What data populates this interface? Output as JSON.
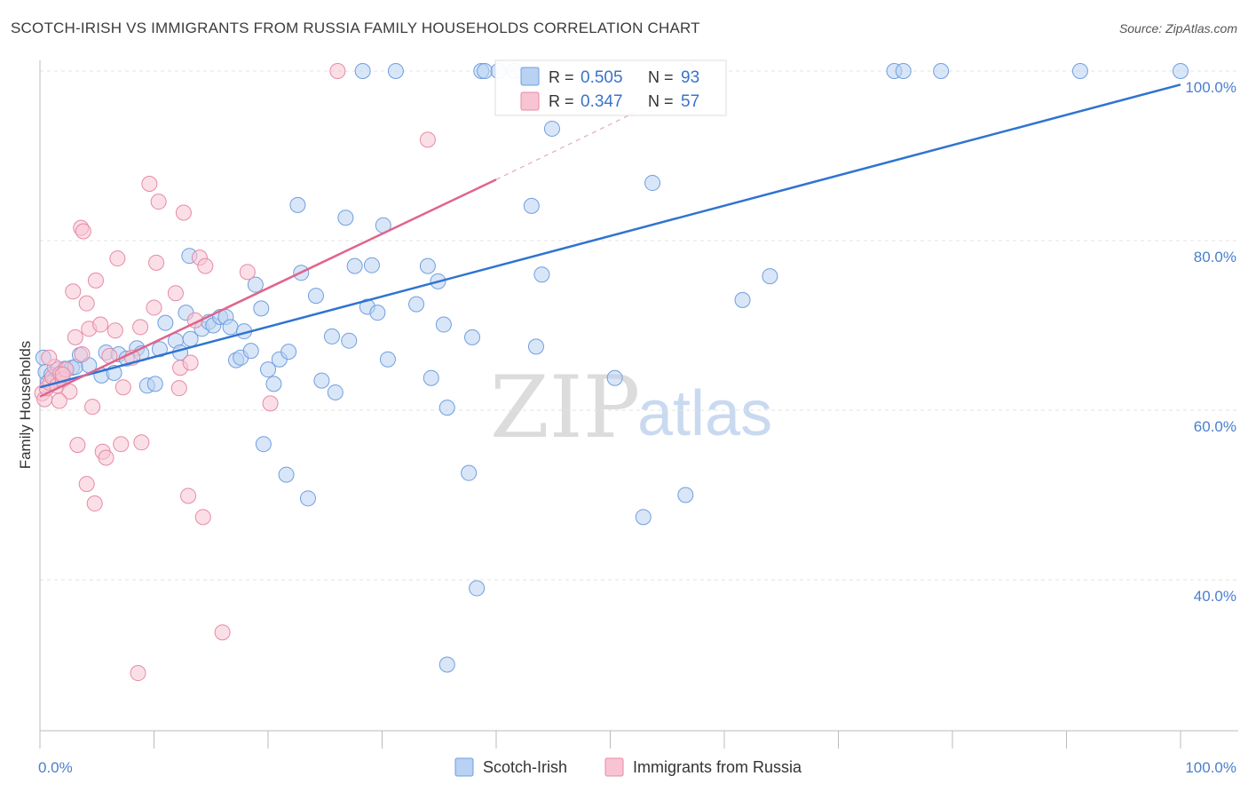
{
  "title": "SCOTCH-IRISH VS IMMIGRANTS FROM RUSSIA FAMILY HOUSEHOLDS CORRELATION CHART",
  "source": "Source: ZipAtlas.com",
  "watermark": {
    "zip": "ZIP",
    "atlas": "atlas"
  },
  "legend": {
    "r_label": "R =",
    "n_label": "N =",
    "items": [
      {
        "r": "0.505",
        "n": "93",
        "fill": "#b9d1f2",
        "stroke": "#6f9fe0"
      },
      {
        "r": "0.347",
        "n": "57",
        "fill": "#f8c4d4",
        "stroke": "#e68aa6"
      }
    ]
  },
  "bottom_legend": [
    {
      "label": "Scotch-Irish",
      "fill": "#b9d1f2",
      "stroke": "#6f9fe0"
    },
    {
      "label": "Immigrants from Russia",
      "fill": "#f8c4d4",
      "stroke": "#e68aa6"
    }
  ],
  "chart_data": {
    "type": "scatter",
    "title": "SCOTCH-IRISH VS IMMIGRANTS FROM RUSSIA FAMILY HOUSEHOLDS CORRELATION CHART",
    "xlabel": "",
    "ylabel": "Family Households",
    "xlim": [
      0,
      100
    ],
    "ylim": [
      20,
      102
    ],
    "x_tick_labels": [
      {
        "value": 0,
        "label": "0.0%"
      },
      {
        "value": 100,
        "label": "100.0%"
      }
    ],
    "y_tick_labels": [
      {
        "value": 40,
        "label": "40.0%"
      },
      {
        "value": 60,
        "label": "60.0%"
      },
      {
        "value": 80,
        "label": "80.0%"
      },
      {
        "value": 100,
        "label": "100.0%"
      }
    ],
    "grid": true,
    "colors": {
      "blue_line": "#2f74d0",
      "pink_line": "#e0648c"
    },
    "series": [
      {
        "name": "Scotch-Irish",
        "color": "#6f9fe0",
        "trend": {
          "x0": 0,
          "y0": 62.7,
          "x1": 100,
          "y1": 98.4
        },
        "points": [
          [
            0.3,
            66.2
          ],
          [
            0.5,
            64.5
          ],
          [
            0.7,
            63.3
          ],
          [
            1.0,
            64.2
          ],
          [
            1.3,
            63.6
          ],
          [
            1.6,
            64.8
          ],
          [
            1.9,
            64.0
          ],
          [
            2.2,
            64.9
          ],
          [
            2.8,
            65.0
          ],
          [
            3.1,
            65.1
          ],
          [
            3.5,
            66.5
          ],
          [
            4.3,
            65.3
          ],
          [
            5.4,
            64.1
          ],
          [
            5.8,
            66.8
          ],
          [
            6.5,
            64.4
          ],
          [
            6.9,
            66.6
          ],
          [
            7.6,
            66.1
          ],
          [
            8.5,
            67.3
          ],
          [
            8.9,
            66.7
          ],
          [
            9.4,
            62.9
          ],
          [
            10.1,
            63.1
          ],
          [
            10.5,
            67.2
          ],
          [
            11.0,
            70.3
          ],
          [
            11.9,
            68.2
          ],
          [
            12.3,
            66.8
          ],
          [
            12.8,
            71.5
          ],
          [
            13.2,
            68.4
          ],
          [
            13.1,
            78.2
          ],
          [
            14.2,
            69.6
          ],
          [
            14.8,
            70.4
          ],
          [
            15.2,
            70.0
          ],
          [
            15.8,
            71.0
          ],
          [
            16.3,
            71.0
          ],
          [
            16.7,
            69.8
          ],
          [
            17.2,
            65.9
          ],
          [
            17.6,
            66.2
          ],
          [
            17.9,
            69.3
          ],
          [
            18.5,
            67.0
          ],
          [
            18.9,
            74.8
          ],
          [
            19.6,
            56.0
          ],
          [
            19.4,
            72.0
          ],
          [
            20.0,
            64.8
          ],
          [
            20.5,
            63.1
          ],
          [
            21.0,
            66.0
          ],
          [
            21.8,
            66.9
          ],
          [
            21.6,
            52.4
          ],
          [
            22.6,
            84.2
          ],
          [
            22.9,
            76.2
          ],
          [
            23.5,
            49.6
          ],
          [
            24.2,
            73.5
          ],
          [
            24.7,
            63.5
          ],
          [
            25.6,
            68.7
          ],
          [
            25.9,
            62.1
          ],
          [
            26.8,
            82.7
          ],
          [
            27.1,
            68.2
          ],
          [
            27.6,
            77.0
          ],
          [
            28.3,
            100.0
          ],
          [
            28.7,
            72.2
          ],
          [
            29.1,
            77.1
          ],
          [
            29.6,
            71.5
          ],
          [
            30.1,
            81.8
          ],
          [
            30.5,
            66.0
          ],
          [
            31.2,
            100.0
          ],
          [
            33.0,
            72.5
          ],
          [
            34.0,
            77.0
          ],
          [
            34.3,
            63.8
          ],
          [
            34.9,
            75.2
          ],
          [
            35.4,
            70.1
          ],
          [
            35.7,
            60.3
          ],
          [
            35.7,
            30.0
          ],
          [
            37.6,
            52.6
          ],
          [
            37.9,
            68.6
          ],
          [
            38.3,
            39.0
          ],
          [
            38.7,
            100.0
          ],
          [
            39.0,
            100.0
          ],
          [
            40.2,
            100.0
          ],
          [
            41.6,
            100.0
          ],
          [
            43.1,
            84.1
          ],
          [
            43.5,
            67.5
          ],
          [
            44.0,
            76.0
          ],
          [
            44.9,
            93.2
          ],
          [
            50.4,
            63.8
          ],
          [
            52.9,
            47.4
          ],
          [
            53.7,
            86.8
          ],
          [
            56.8,
            100.0
          ],
          [
            56.6,
            50.0
          ],
          [
            61.6,
            73.0
          ],
          [
            64.0,
            75.8
          ],
          [
            74.9,
            100.0
          ],
          [
            75.7,
            100.0
          ],
          [
            79.0,
            100.0
          ],
          [
            91.2,
            100.0
          ],
          [
            100.0,
            100.0
          ]
        ]
      },
      {
        "name": "Immigrants from Russia",
        "color": "#e68aa6",
        "trend": {
          "x0": 0,
          "y0": 61.6,
          "x1": 40.0,
          "y1": 87.2
        },
        "trend_extension": {
          "x1": 57.2,
          "y1": 98.4
        },
        "points": [
          [
            0.2,
            62.0
          ],
          [
            0.4,
            61.3
          ],
          [
            0.6,
            62.6
          ],
          [
            0.9,
            63.2
          ],
          [
            1.1,
            63.9
          ],
          [
            1.3,
            65.1
          ],
          [
            1.5,
            62.9
          ],
          [
            1.8,
            64.3
          ],
          [
            2.0,
            63.6
          ],
          [
            2.3,
            64.8
          ],
          [
            2.6,
            62.2
          ],
          [
            2.9,
            74.0
          ],
          [
            3.1,
            68.6
          ],
          [
            3.3,
            55.9
          ],
          [
            3.6,
            81.5
          ],
          [
            3.8,
            81.1
          ],
          [
            4.1,
            72.6
          ],
          [
            4.3,
            69.6
          ],
          [
            4.6,
            60.4
          ],
          [
            4.9,
            75.3
          ],
          [
            5.3,
            70.1
          ],
          [
            5.5,
            55.1
          ],
          [
            5.8,
            54.4
          ],
          [
            6.1,
            66.4
          ],
          [
            6.6,
            69.4
          ],
          [
            6.8,
            77.9
          ],
          [
            7.1,
            56.0
          ],
          [
            7.3,
            62.7
          ],
          [
            8.1,
            66.2
          ],
          [
            8.8,
            69.8
          ],
          [
            8.9,
            56.2
          ],
          [
            9.6,
            86.7
          ],
          [
            10.0,
            72.1
          ],
          [
            10.2,
            77.4
          ],
          [
            10.4,
            84.6
          ],
          [
            11.9,
            73.8
          ],
          [
            12.3,
            65.0
          ],
          [
            12.6,
            83.3
          ],
          [
            13.2,
            65.6
          ],
          [
            13.0,
            49.9
          ],
          [
            13.6,
            70.6
          ],
          [
            14.0,
            78.0
          ],
          [
            14.3,
            47.4
          ],
          [
            14.5,
            77.0
          ],
          [
            16.0,
            33.8
          ],
          [
            18.2,
            76.3
          ],
          [
            20.2,
            60.8
          ],
          [
            26.1,
            100.0
          ],
          [
            34.0,
            91.9
          ],
          [
            4.1,
            51.3
          ],
          [
            4.8,
            49.0
          ],
          [
            1.7,
            61.1
          ],
          [
            3.7,
            66.6
          ],
          [
            12.2,
            62.6
          ],
          [
            0.8,
            66.2
          ],
          [
            8.6,
            29.0
          ],
          [
            2.0,
            64.2
          ]
        ]
      }
    ]
  }
}
